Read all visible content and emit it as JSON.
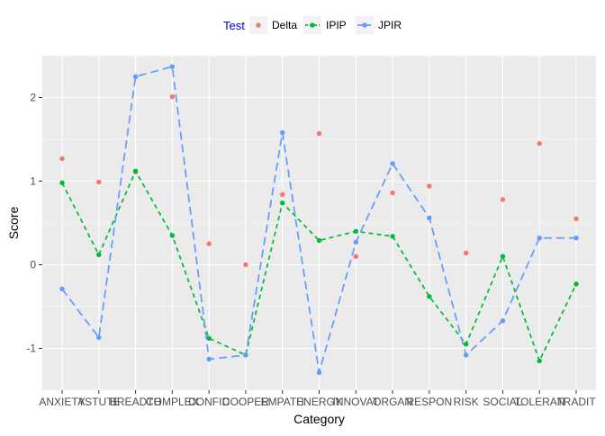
{
  "chart_data": {
    "type": "line",
    "xlabel": "Category",
    "ylabel": "Score",
    "categories": [
      "ANXIETY",
      "ASTUTE",
      "BREADTH",
      "COMPLEX",
      "CONFID",
      "COOPER",
      "EMPATH",
      "ENERGY",
      "INNOVAT",
      "ORGAN",
      "RESPON",
      "RISK",
      "SOCIAL",
      "TOLERAN",
      "TRADIT"
    ],
    "ylim": [
      -1.5,
      2.5
    ],
    "yticks": [
      -1,
      0,
      1,
      2
    ],
    "grid": true,
    "legend": {
      "title": "Test",
      "position": "top"
    },
    "series": [
      {
        "name": "Delta",
        "color": "#F8766D",
        "style": "points",
        "values": [
          1.27,
          0.99,
          1.11,
          2.01,
          0.25,
          0.0,
          0.84,
          1.57,
          0.1,
          0.86,
          0.94,
          0.14,
          0.78,
          1.45,
          0.55
        ]
      },
      {
        "name": "IPIP",
        "color": "#00BA38",
        "style": "dashed-line-points",
        "values": [
          0.98,
          0.12,
          1.12,
          0.35,
          -0.88,
          -1.08,
          0.74,
          0.29,
          0.4,
          0.34,
          -0.38,
          -0.95,
          0.1,
          -1.15,
          -0.23
        ]
      },
      {
        "name": "JPIR",
        "color": "#619CFF",
        "style": "longdash-line-points",
        "values": [
          -0.29,
          -0.87,
          2.25,
          2.37,
          -1.13,
          -1.08,
          1.58,
          -1.29,
          0.27,
          1.21,
          0.56,
          -1.08,
          -0.67,
          0.32,
          0.32
        ]
      }
    ]
  }
}
